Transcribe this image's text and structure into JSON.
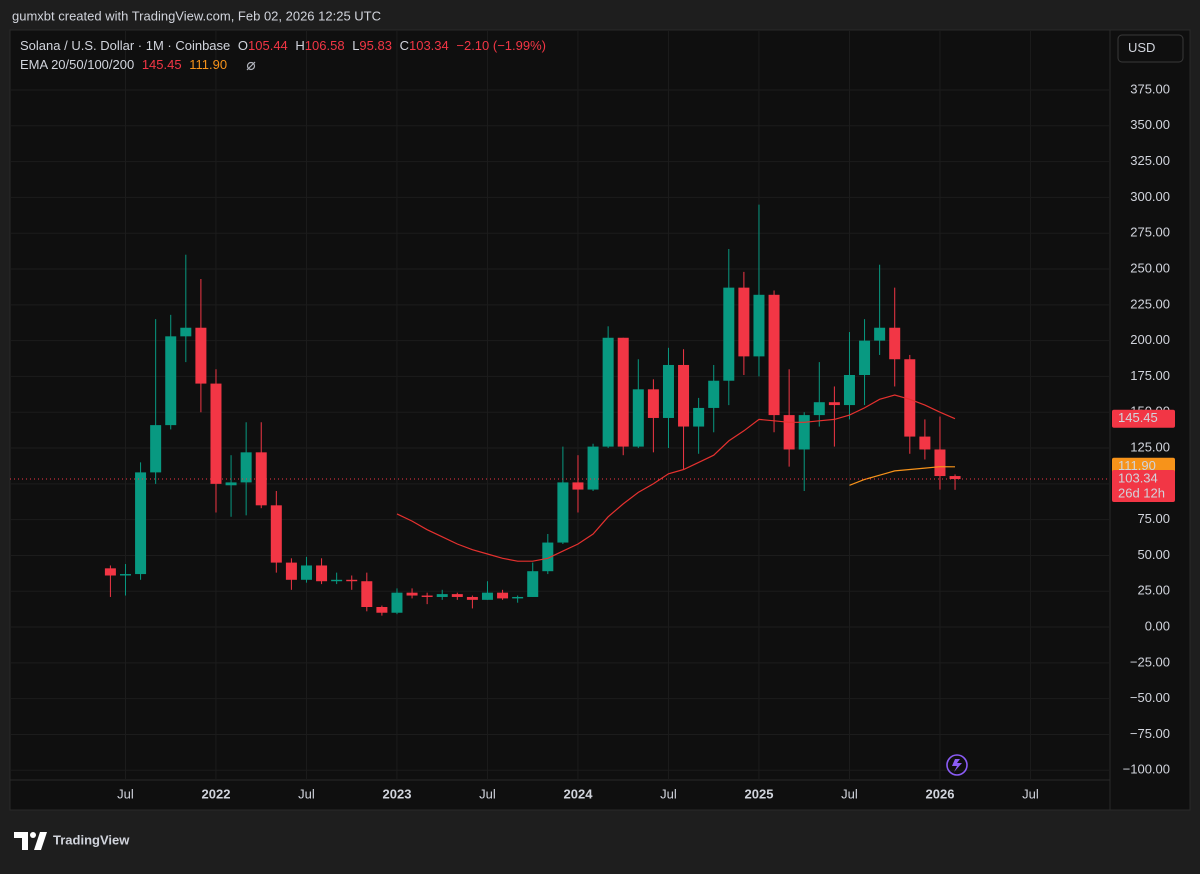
{
  "watermark": "gumxbt created with TradingView.com, Feb 02, 2026 12:25 UTC",
  "logo": "TradingView",
  "currency": "USD",
  "chart_data": {
    "type": "candlestick",
    "title": "Solana / U.S. Dollar · 1M · Coinbase",
    "ohlc_legend": [
      {
        "key": "O",
        "value": "105.44"
      },
      {
        "key": "H",
        "value": "106.58"
      },
      {
        "key": "L",
        "value": "95.83"
      },
      {
        "key": "C",
        "value": "103.34"
      }
    ],
    "change": "−2.10 (−1.99%)",
    "indicator": {
      "label": "EMA 20/50/100/200",
      "values": [
        "145.45",
        "111.90"
      ]
    },
    "up_color": "#089981",
    "down_color": "#f23645",
    "x": [
      "2021-06",
      "2021-07",
      "2021-08",
      "2021-09",
      "2021-10",
      "2021-11",
      "2021-12",
      "2022-01",
      "2022-02",
      "2022-03",
      "2022-04",
      "2022-05",
      "2022-06",
      "2022-07",
      "2022-08",
      "2022-09",
      "2022-10",
      "2022-11",
      "2022-12",
      "2023-01",
      "2023-02",
      "2023-03",
      "2023-04",
      "2023-05",
      "2023-06",
      "2023-07",
      "2023-08",
      "2023-09",
      "2023-10",
      "2023-11",
      "2023-12",
      "2024-01",
      "2024-02",
      "2024-03",
      "2024-04",
      "2024-05",
      "2024-06",
      "2024-07",
      "2024-08",
      "2024-09",
      "2024-10",
      "2024-11",
      "2024-12",
      "2025-01",
      "2025-02",
      "2025-03",
      "2025-04",
      "2025-05",
      "2025-06",
      "2025-07",
      "2025-08",
      "2025-09",
      "2025-10",
      "2025-11",
      "2025-12",
      "2026-01",
      "2026-02"
    ],
    "open": [
      41,
      36,
      37,
      108,
      141,
      203,
      209,
      170,
      99,
      101,
      122,
      85,
      45,
      33,
      43,
      32,
      33,
      32,
      14,
      10,
      24,
      22,
      21,
      23,
      21,
      19,
      24,
      20,
      21,
      39,
      59,
      101,
      96,
      126,
      202,
      126,
      166,
      146,
      183,
      140,
      153,
      172,
      237,
      189,
      232,
      148,
      124,
      148,
      157,
      155,
      176,
      200,
      209,
      187,
      133,
      124,
      105.44
    ],
    "high": [
      43,
      44,
      115,
      215,
      218,
      260,
      243,
      180,
      120,
      143,
      143,
      95,
      48,
      49,
      48,
      38,
      36,
      38,
      15,
      27,
      27,
      24,
      26,
      24,
      22,
      32,
      26,
      22,
      45,
      65,
      126,
      120,
      128,
      210,
      202,
      187,
      173,
      195,
      194,
      160,
      183,
      264,
      248,
      295,
      235,
      180,
      150,
      185,
      168,
      206,
      215,
      253,
      237,
      190,
      145,
      147,
      106.58
    ],
    "low": [
      21,
      22,
      33,
      100,
      138,
      185,
      150,
      80,
      77,
      78,
      83,
      38,
      26,
      31,
      30,
      30,
      26,
      11,
      8,
      9,
      20,
      16,
      19,
      19,
      13,
      19,
      19,
      17,
      21,
      37,
      58,
      80,
      95,
      125,
      120,
      125,
      122,
      125,
      110,
      121,
      136,
      155,
      176,
      175,
      136,
      112,
      95,
      140,
      126,
      145,
      155,
      190,
      168,
      121,
      117,
      96,
      95.83
    ],
    "close": [
      36,
      37,
      108,
      141,
      203,
      209,
      170,
      100,
      101,
      122,
      85,
      45,
      33,
      43,
      32,
      33,
      32,
      14,
      10,
      24,
      22,
      21,
      23,
      21,
      19,
      24,
      20,
      21,
      39,
      59,
      101,
      96,
      126,
      202,
      126,
      166,
      146,
      183,
      140,
      153,
      172,
      237,
      189,
      232,
      148,
      124,
      148,
      157,
      155,
      176,
      200,
      209,
      187,
      133,
      124,
      105.44,
      103.34
    ],
    "overlays": [
      {
        "color": "#e5312f",
        "values": [
          null,
          null,
          null,
          null,
          null,
          null,
          null,
          null,
          null,
          null,
          null,
          null,
          null,
          null,
          null,
          null,
          null,
          null,
          null,
          79,
          74,
          68,
          63,
          58,
          54,
          51,
          48,
          46,
          46,
          48,
          53,
          58,
          65,
          77,
          86,
          94,
          100,
          107,
          110,
          115,
          120,
          130,
          137,
          145,
          144,
          143,
          143,
          144,
          145,
          148,
          153,
          159,
          162,
          159,
          155,
          150,
          145.45
        ]
      },
      {
        "color": "#f7931a",
        "values": [
          null,
          null,
          null,
          null,
          null,
          null,
          null,
          null,
          null,
          null,
          null,
          null,
          null,
          null,
          null,
          null,
          null,
          null,
          null,
          null,
          null,
          null,
          null,
          null,
          null,
          null,
          null,
          null,
          null,
          null,
          null,
          null,
          null,
          null,
          null,
          null,
          null,
          null,
          null,
          null,
          null,
          null,
          null,
          null,
          null,
          null,
          null,
          null,
          null,
          99,
          103,
          106,
          109,
          110,
          111,
          112,
          111.9
        ]
      }
    ],
    "ylim": [
      -106.8,
      416.9
    ],
    "yticks": [
      {
        "value": 375,
        "label": "375.00"
      },
      {
        "value": 350,
        "label": "350.00"
      },
      {
        "value": 325,
        "label": "325.00"
      },
      {
        "value": 300,
        "label": "300.00"
      },
      {
        "value": 275,
        "label": "275.00"
      },
      {
        "value": 250,
        "label": "250.00"
      },
      {
        "value": 225,
        "label": "225.00"
      },
      {
        "value": 200,
        "label": "200.00"
      },
      {
        "value": 175,
        "label": "175.00"
      },
      {
        "value": 150,
        "label": "150.00"
      },
      {
        "value": 125,
        "label": "125.00"
      },
      {
        "value": 100,
        "label": "100.00"
      },
      {
        "value": 75,
        "label": "75.00"
      },
      {
        "value": 50,
        "label": "50.00"
      },
      {
        "value": 25,
        "label": "25.00"
      },
      {
        "value": 0,
        "label": "0.00"
      },
      {
        "value": -25,
        "label": "−25.00"
      },
      {
        "value": -50,
        "label": "−50.00"
      },
      {
        "value": -75,
        "label": "−75.00"
      },
      {
        "value": -100,
        "label": "−100.00"
      }
    ],
    "xticks": [
      {
        "value": "2021-07",
        "label": "Jul"
      },
      {
        "value": "2022-01",
        "label": "2022"
      },
      {
        "value": "2022-07",
        "label": "Jul"
      },
      {
        "value": "2023-01",
        "label": "2023"
      },
      {
        "value": "2023-07",
        "label": "Jul"
      },
      {
        "value": "2024-01",
        "label": "2024"
      },
      {
        "value": "2024-07",
        "label": "Jul"
      },
      {
        "value": "2025-01",
        "label": "2025"
      },
      {
        "value": "2025-07",
        "label": "Jul"
      },
      {
        "value": "2026-01",
        "label": "2026"
      },
      {
        "value": "2026-07",
        "label": "Jul"
      }
    ],
    "grid": true,
    "price_labels": [
      {
        "text": "145.45",
        "value": 145.45,
        "color": "#f23645"
      },
      {
        "text": "111.90",
        "value": 111.9,
        "color": "#f7931a"
      },
      {
        "text": "103.34",
        "value": 103.34,
        "color": "#f23645",
        "sub": "26d 12h"
      }
    ]
  }
}
